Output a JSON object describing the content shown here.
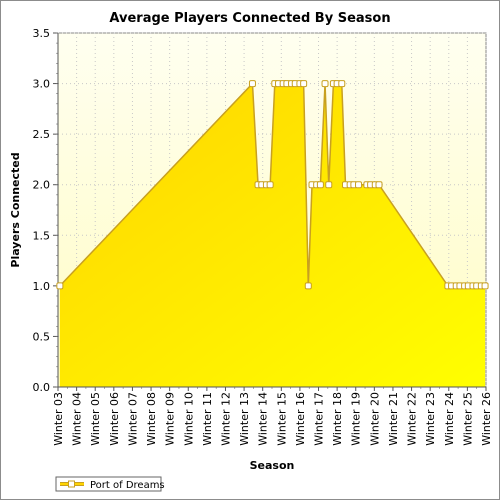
{
  "chart_data": {
    "type": "area",
    "title": "Average Players Connected By Season",
    "xlabel": "Season",
    "ylabel": "Players Connected",
    "ylim": [
      0,
      3.5
    ],
    "yticks": [
      "0.0",
      "0.5",
      "1.0",
      "1.5",
      "2.0",
      "2.5",
      "3.0",
      "3.5"
    ],
    "xrange": [
      0,
      46
    ],
    "grid": true,
    "legend_position": "bottom-left",
    "x_tick_labels": [
      "Winter 03",
      "Winter 04",
      "Winter 05",
      "Winter 06",
      "Winter 07",
      "Winter 08",
      "Winter 09",
      "Winter 10",
      "Winter 11",
      "Winter 12",
      "Winter 13",
      "Winter 14",
      "Winter 15",
      "Winter 16",
      "Winter 17",
      "Winter 18",
      "Winter 19",
      "Winter 20",
      "Winter 21",
      "Winter 22",
      "Winter 23",
      "Winter 24",
      "Winter 25",
      "Winter 26"
    ],
    "x_tick_positions": [
      0,
      2,
      4,
      6,
      8,
      10,
      12,
      14,
      16,
      18,
      20,
      22,
      24,
      26,
      28,
      30,
      32,
      34,
      36,
      38,
      40,
      42,
      44,
      46
    ],
    "series": [
      {
        "name": "Port of Dreams",
        "points": [
          [
            0.2,
            1
          ],
          [
            20.9,
            3
          ],
          [
            21.5,
            2
          ],
          [
            21.9,
            2
          ],
          [
            22.4,
            2
          ],
          [
            22.8,
            2
          ],
          [
            23.3,
            3
          ],
          [
            23.7,
            3
          ],
          [
            24.2,
            3
          ],
          [
            24.6,
            3
          ],
          [
            25.1,
            3
          ],
          [
            25.5,
            3
          ],
          [
            26.0,
            3
          ],
          [
            26.4,
            3
          ],
          [
            26.9,
            1
          ],
          [
            27.3,
            2
          ],
          [
            27.8,
            2
          ],
          [
            28.2,
            2
          ],
          [
            28.7,
            3
          ],
          [
            29.1,
            2
          ],
          [
            29.6,
            3
          ],
          [
            30.0,
            3
          ],
          [
            30.5,
            3
          ],
          [
            30.9,
            2
          ],
          [
            31.4,
            2
          ],
          [
            31.8,
            2
          ],
          [
            32.3,
            2
          ],
          [
            33.2,
            2
          ],
          [
            33.6,
            2
          ],
          [
            34.1,
            2
          ],
          [
            34.5,
            2
          ],
          [
            41.9,
            1
          ],
          [
            42.3,
            1
          ],
          [
            42.8,
            1
          ],
          [
            43.2,
            1
          ],
          [
            43.7,
            1
          ],
          [
            44.1,
            1
          ],
          [
            44.6,
            1
          ],
          [
            45.0,
            1
          ],
          [
            45.5,
            1
          ],
          [
            45.9,
            1
          ]
        ]
      }
    ],
    "colors": {
      "plot_background_top": "#fffff0",
      "plot_background_bottom": "#fffcc4",
      "area_top": "#ffd400",
      "area_bottom": "#ffff00",
      "line": "#c8a020",
      "marker_fill": "#ffffff",
      "grid": "#c8c8c8"
    }
  }
}
